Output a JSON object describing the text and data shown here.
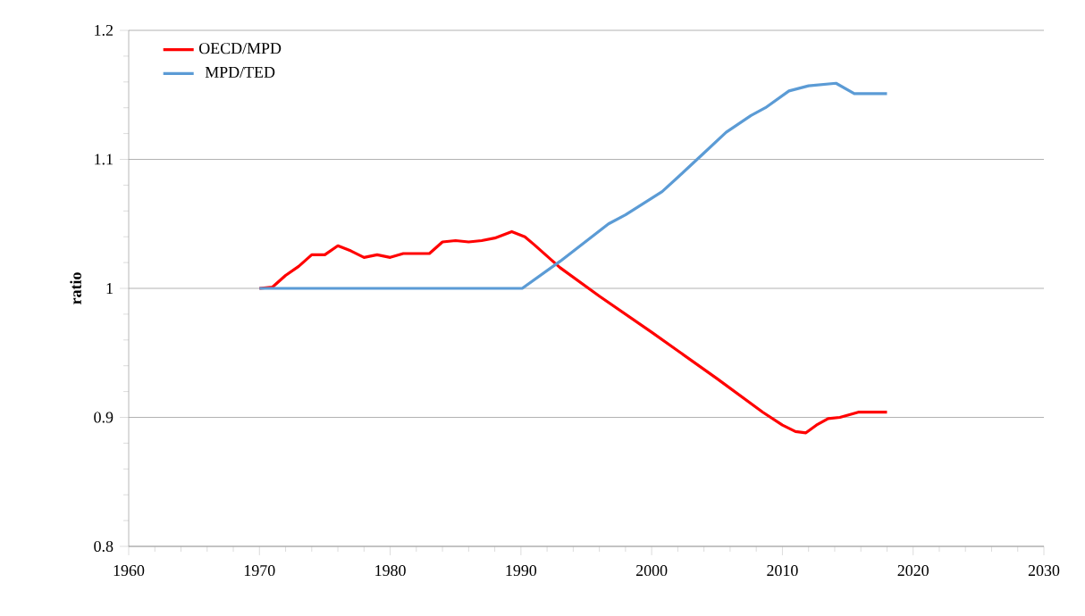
{
  "chart_data": {
    "type": "line",
    "ylabel": "ratio",
    "xlim": [
      1960,
      2030
    ],
    "xticks": [
      1960,
      1970,
      1980,
      1990,
      2000,
      2010,
      2020,
      2030
    ],
    "ylim": [
      0.8,
      1.2
    ],
    "yticks": [
      0.8,
      0.9,
      1,
      1.1,
      1.2
    ],
    "grid": "y",
    "legend": "top left",
    "series": [
      {
        "name": "OECD/MPD",
        "color": "#ff0000",
        "x": [
          1970,
          1971,
          1972,
          1973,
          1974,
          1975,
          1976,
          1977,
          1978,
          1979,
          1980,
          1981,
          1982,
          1983,
          1984,
          1985,
          1986,
          1987,
          1988,
          1989.3,
          1990.3,
          1991,
          1992,
          1993,
          1996,
          2000,
          2005,
          2008.5,
          2010,
          2011,
          2011.8,
          2012.6,
          2013.5,
          2014.4,
          2015.8,
          2018
        ],
        "values": [
          1.0,
          1.001,
          1.01,
          1.017,
          1.026,
          1.026,
          1.033,
          1.029,
          1.024,
          1.026,
          1.024,
          1.027,
          1.027,
          1.027,
          1.036,
          1.037,
          1.036,
          1.037,
          1.039,
          1.044,
          1.04,
          1.034,
          1.025,
          1.016,
          0.994,
          0.966,
          0.93,
          0.904,
          0.894,
          0.889,
          0.888,
          0.894,
          0.899,
          0.9,
          0.904,
          0.904
        ]
      },
      {
        "name": "MPD/TED",
        "color": "#5b9bd5",
        "x": [
          1970,
          1990.1,
          1993,
          1996.7,
          1998,
          2000.8,
          2002.1,
          2003.9,
          2005.7,
          2007.6,
          2008.7,
          2010.5,
          2012,
          2014.1,
          2015.5,
          2018
        ],
        "values": [
          1.0,
          1.0,
          1.021,
          1.05,
          1.057,
          1.075,
          1.087,
          1.104,
          1.121,
          1.134,
          1.14,
          1.153,
          1.157,
          1.159,
          1.151,
          1.151
        ]
      }
    ]
  }
}
